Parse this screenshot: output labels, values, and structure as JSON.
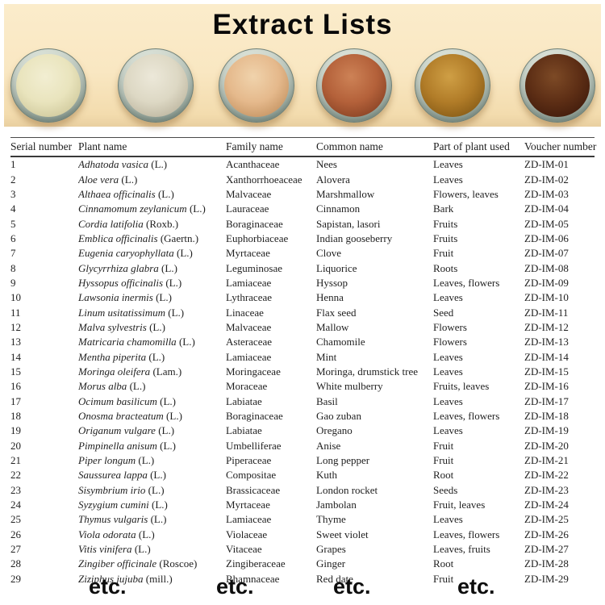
{
  "title": "Extract Lists",
  "photo": {
    "background_color": "#f9e7c2",
    "dish_rim_color": "#b9c4ba",
    "bowls": [
      {
        "name": "pale-yellow-extract-powder",
        "base": "#e9e4bd",
        "light": "#f2eed2",
        "dark": "#c6bf90"
      },
      {
        "name": "off-white-extract-powder",
        "base": "#ddd8c4",
        "light": "#ece8d9",
        "dark": "#b2aa93"
      },
      {
        "name": "sandy-tan-extract-powder",
        "base": "#e5b98c",
        "light": "#f0d3ac",
        "dark": "#ba8754"
      },
      {
        "name": "rust-orange-extract-powder",
        "base": "#b4613a",
        "light": "#cd8256",
        "dark": "#79381d"
      },
      {
        "name": "ochre-brown-extract-powder",
        "base": "#b17c28",
        "light": "#cf9f45",
        "dark": "#785010"
      },
      {
        "name": "dark-brown-extract-powder",
        "base": "#5d2e15",
        "light": "#7d4a26",
        "dark": "#371509"
      }
    ]
  },
  "table": {
    "columns": [
      "Serial number",
      "Plant name",
      "Family name",
      "Common name",
      "Part of plant used",
      "Voucher number"
    ],
    "rows": [
      {
        "serial": "1",
        "plant": "Adhatoda vasica",
        "authority": "(L.)",
        "family": "Acanthaceae",
        "common": "Nees",
        "part": "Leaves",
        "voucher": "ZD-IM-01"
      },
      {
        "serial": "2",
        "plant": "Aloe vera",
        "authority": "(L.)",
        "family": "Xanthorrhoeaceae",
        "common": "Alovera",
        "part": "Leaves",
        "voucher": "ZD-IM-02"
      },
      {
        "serial": "3",
        "plant": "Althaea officinalis",
        "authority": "(L.)",
        "family": "Malvaceae",
        "common": "Marshmallow",
        "part": "Flowers, leaves",
        "voucher": "ZD-IM-03"
      },
      {
        "serial": "4",
        "plant": "Cinnamomum zeylanicum",
        "authority": "(L.)",
        "family": "Lauraceae",
        "common": "Cinnamon",
        "part": "Bark",
        "voucher": "ZD-IM-04"
      },
      {
        "serial": "5",
        "plant": "Cordia latifolia",
        "authority": "(Roxb.)",
        "family": "Boraginaceae",
        "common": "Sapistan, lasori",
        "part": "Fruits",
        "voucher": "ZD-IM-05"
      },
      {
        "serial": "6",
        "plant": "Emblica officinalis",
        "authority": "(Gaertn.)",
        "family": "Euphorbiaceae",
        "common": "Indian gooseberry",
        "part": "Fruits",
        "voucher": "ZD-IM-06"
      },
      {
        "serial": "7",
        "plant": "Eugenia caryophyllata",
        "authority": "(L.)",
        "family": "Myrtaceae",
        "common": "Clove",
        "part": "Fruit",
        "voucher": "ZD-IM-07"
      },
      {
        "serial": "8",
        "plant": "Glycyrrhiza glabra",
        "authority": "(L.)",
        "family": "Leguminosae",
        "common": "Liquorice",
        "part": "Roots",
        "voucher": "ZD-IM-08"
      },
      {
        "serial": "9",
        "plant": "Hyssopus officinalis",
        "authority": "(L.)",
        "family": "Lamiaceae",
        "common": "Hyssop",
        "part": "Leaves, flowers",
        "voucher": "ZD-IM-09"
      },
      {
        "serial": "10",
        "plant": "Lawsonia inermis",
        "authority": "(L.)",
        "family": "Lythraceae",
        "common": "Henna",
        "part": "Leaves",
        "voucher": "ZD-IM-10"
      },
      {
        "serial": "11",
        "plant": "Linum usitatissimum",
        "authority": "(L.)",
        "family": "Linaceae",
        "common": "Flax seed",
        "part": "Seed",
        "voucher": "ZD-IM-11"
      },
      {
        "serial": "12",
        "plant": "Malva sylvestris",
        "authority": "(L.)",
        "family": "Malvaceae",
        "common": "Mallow",
        "part": "Flowers",
        "voucher": "ZD-IM-12"
      },
      {
        "serial": "13",
        "plant": "Matricaria chamomilla",
        "authority": "(L.)",
        "family": "Asteraceae",
        "common": "Chamomile",
        "part": "Flowers",
        "voucher": "ZD-IM-13"
      },
      {
        "serial": "14",
        "plant": "Mentha piperita",
        "authority": "(L.)",
        "family": "Lamiaceae",
        "common": "Mint",
        "part": "Leaves",
        "voucher": "ZD-IM-14"
      },
      {
        "serial": "15",
        "plant": "Moringa oleifera",
        "authority": "(Lam.)",
        "family": "Moringaceae",
        "common": "Moringa, drumstick tree",
        "part": "Leaves",
        "voucher": "ZD-IM-15"
      },
      {
        "serial": "16",
        "plant": "Morus alba",
        "authority": "(L.)",
        "family": "Moraceae",
        "common": "White mulberry",
        "part": "Fruits, leaves",
        "voucher": "ZD-IM-16"
      },
      {
        "serial": "17",
        "plant": "Ocimum basilicum",
        "authority": "(L.)",
        "family": "Labiatae",
        "common": "Basil",
        "part": "Leaves",
        "voucher": "ZD-IM-17"
      },
      {
        "serial": "18",
        "plant": "Onosma bracteatum",
        "authority": "(L.)",
        "family": "Boraginaceae",
        "common": "Gao zuban",
        "part": "Leaves, flowers",
        "voucher": "ZD-IM-18"
      },
      {
        "serial": "19",
        "plant": "Origanum vulgare",
        "authority": "(L.)",
        "family": "Labiatae",
        "common": "Oregano",
        "part": "Leaves",
        "voucher": "ZD-IM-19"
      },
      {
        "serial": "20",
        "plant": "Pimpinella anisum",
        "authority": "(L.)",
        "family": "Umbelliferae",
        "common": "Anise",
        "part": "Fruit",
        "voucher": "ZD-IM-20"
      },
      {
        "serial": "21",
        "plant": "Piper longum",
        "authority": "(L.)",
        "family": "Piperaceae",
        "common": "Long pepper",
        "part": "Fruit",
        "voucher": "ZD-IM-21"
      },
      {
        "serial": "22",
        "plant": "Saussurea lappa",
        "authority": "(L.)",
        "family": "Compositae",
        "common": "Kuth",
        "part": "Root",
        "voucher": "ZD-IM-22"
      },
      {
        "serial": "23",
        "plant": "Sisymbrium irio",
        "authority": "(L.)",
        "family": "Brassicaceae",
        "common": "London rocket",
        "part": "Seeds",
        "voucher": "ZD-IM-23"
      },
      {
        "serial": "24",
        "plant": "Syzygium cumini",
        "authority": "(L.)",
        "family": "Myrtaceae",
        "common": "Jambolan",
        "part": "Fruit, leaves",
        "voucher": "ZD-IM-24"
      },
      {
        "serial": "25",
        "plant": "Thymus vulgaris",
        "authority": "(L.)",
        "family": "Lamiaceae",
        "common": "Thyme",
        "part": "Leaves",
        "voucher": "ZD-IM-25"
      },
      {
        "serial": "26",
        "plant": "Viola odorata",
        "authority": "(L.)",
        "family": "Violaceae",
        "common": "Sweet violet",
        "part": "Leaves, flowers",
        "voucher": "ZD-IM-26"
      },
      {
        "serial": "27",
        "plant": "Vitis vinifera",
        "authority": "(L.)",
        "family": "Vitaceae",
        "common": "Grapes",
        "part": "Leaves, fruits",
        "voucher": "ZD-IM-27"
      },
      {
        "serial": "28",
        "plant": "Zingiber officinale",
        "authority": "(Roscoe)",
        "family": "Zingiberaceae",
        "common": "Ginger",
        "part": "Root",
        "voucher": "ZD-IM-28"
      },
      {
        "serial": "29",
        "plant": "Ziziphus jujuba",
        "authority": "(mill.)",
        "family": "Rhamnaceae",
        "common": "Red date",
        "part": "Fruit",
        "voucher": "ZD-IM-29"
      }
    ]
  },
  "footer": {
    "etc_labels": [
      "etc.",
      "etc.",
      "etc.",
      "etc."
    ]
  }
}
